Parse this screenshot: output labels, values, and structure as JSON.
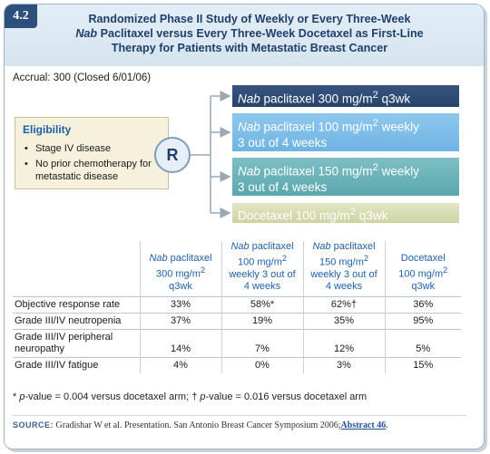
{
  "badge": "4.2",
  "title": {
    "line1": "Randomized Phase II Study of Weekly or Every Three-Week",
    "line2_italic": "Nab",
    "line2_rest": " Paclitaxel versus Every Three-Week Docetaxel as First-Line",
    "line3": "Therapy for Patients with Metastatic Breast Cancer"
  },
  "accrual": "Accrual: 300 (Closed 6/01/06)",
  "eligibility": {
    "title": "Eligibility",
    "items": [
      "Stage IV disease",
      "No prior chemotherapy for metastatic disease"
    ]
  },
  "randomize_label": "R",
  "arms": [
    {
      "italic": "Nab",
      "l1": " paclitaxel 300 mg/m",
      "sup": "2",
      "l1b": " q3wk",
      "l2": ""
    },
    {
      "italic": "Nab",
      "l1": " paclitaxel 100 mg/m",
      "sup": "2",
      "l1b": " weekly",
      "l2": "3 out of 4 weeks"
    },
    {
      "italic": "Nab",
      "l1": " paclitaxel 150 mg/m",
      "sup": "2",
      "l1b": " weekly",
      "l2": "3 out of 4 weeks"
    },
    {
      "italic": "",
      "l1": "Docetaxel 100 mg/m",
      "sup": "2",
      "l1b": " q3wk",
      "l2": ""
    }
  ],
  "table": {
    "headers": [
      {
        "italic": "Nab",
        "rest1": " paclitaxel",
        "rest2": "300 mg/m",
        "sup": "2",
        "rest3": "q3wk",
        "rest4": ""
      },
      {
        "italic": "Nab",
        "rest1": " paclitaxel",
        "rest2": "100 mg/m",
        "sup": "2",
        "rest3": "weekly 3 out of",
        "rest4": "4 weeks"
      },
      {
        "italic": "Nab",
        "rest1": " paclitaxel",
        "rest2": "150 mg/m",
        "sup": "2",
        "rest3": "weekly 3 out of",
        "rest4": "4 weeks"
      },
      {
        "italic": "",
        "rest1": "Docetaxel",
        "rest2": "100 mg/m",
        "sup": "2",
        "rest3": "q3wk",
        "rest4": ""
      }
    ],
    "rows": [
      {
        "label": "Objective response rate",
        "label2": "",
        "values": [
          "33%",
          "58%*",
          "62%†",
          "36%"
        ]
      },
      {
        "label": "Grade III/IV neutropenia",
        "label2": "",
        "values": [
          "37%",
          "19%",
          "35%",
          "95%"
        ]
      },
      {
        "label": "Grade III/IV peripheral",
        "label2": "neuropathy",
        "values": [
          "14%",
          "7%",
          "12%",
          "5%"
        ]
      },
      {
        "label": "Grade III/IV fatigue",
        "label2": "",
        "values": [
          "4%",
          "0%",
          "3%",
          "15%"
        ]
      }
    ]
  },
  "footnote": {
    "star": "* ",
    "p1": "p",
    "t1": "-value = 0.004 versus docetaxel arm; ",
    "dagger": "†",
    "p2": " p",
    "t2": "-value = 0.016 versus docetaxel arm"
  },
  "source": {
    "label": "SOURCE:",
    "text": " Gradishar W et al. Presentation. San Antonio Breast Cancer Symposium 2006;",
    "link": "Abstract 46",
    "end": "."
  },
  "colors": {
    "arm1": "#2d4b76",
    "arm2": "#7dbde9",
    "arm3": "#6bb3b9",
    "arm4": "#d9ddb3",
    "header_text": "#1f3f6b"
  }
}
